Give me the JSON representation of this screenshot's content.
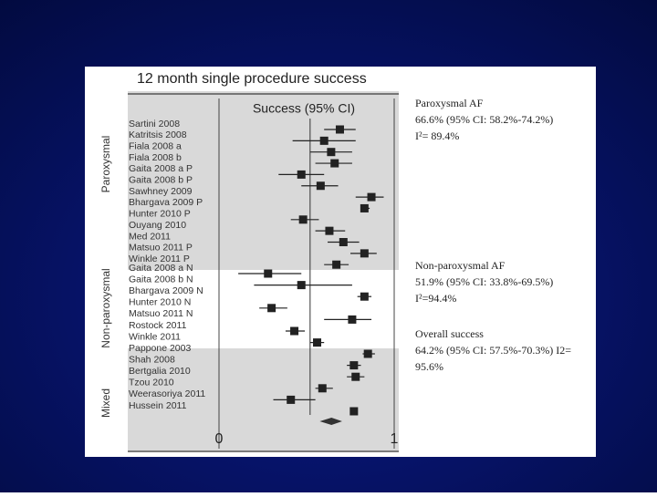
{
  "chart_data": {
    "type": "forest",
    "title": "12 month single procedure success",
    "column_header": "Success (95% CI)",
    "xlim": [
      0,
      1
    ],
    "xticks": [
      0,
      1
    ],
    "reference_x": 0.52,
    "groups": [
      {
        "name": "Paroxysmal",
        "studies": [
          {
            "name": "Sartini 2008",
            "estimate": 0.69,
            "lower": 0.6,
            "upper": 0.78
          },
          {
            "name": "Katritsis 2008",
            "estimate": 0.6,
            "lower": 0.42,
            "upper": 0.78
          },
          {
            "name": "Fiala 2008 a",
            "estimate": 0.64,
            "lower": 0.52,
            "upper": 0.76
          },
          {
            "name": "Fiala 2008 b",
            "estimate": 0.66,
            "lower": 0.55,
            "upper": 0.76
          },
          {
            "name": "Gaita 2008 a P",
            "estimate": 0.47,
            "lower": 0.34,
            "upper": 0.6
          },
          {
            "name": "Gaita 2008 b P",
            "estimate": 0.58,
            "lower": 0.47,
            "upper": 0.68
          },
          {
            "name": "Sawhney 2009",
            "estimate": 0.87,
            "lower": 0.78,
            "upper": 0.94
          },
          {
            "name": "Bhargava 2009 P",
            "estimate": 0.83,
            "lower": 0.81,
            "upper": 0.86
          },
          {
            "name": "Hunter 2010 P",
            "estimate": 0.48,
            "lower": 0.41,
            "upper": 0.57
          },
          {
            "name": "Ouyang 2010",
            "estimate": 0.63,
            "lower": 0.55,
            "upper": 0.72
          },
          {
            "name": "Med 2011",
            "estimate": 0.71,
            "lower": 0.62,
            "upper": 0.8
          },
          {
            "name": "Matsuo 2011 P",
            "estimate": 0.83,
            "lower": 0.75,
            "upper": 0.9
          },
          {
            "name": "Winkle 2011 P",
            "estimate": 0.67,
            "lower": 0.6,
            "upper": 0.74
          }
        ]
      },
      {
        "name": "Non-paroxysmal",
        "studies": [
          {
            "name": "Gaita 2008 a N",
            "estimate": 0.28,
            "lower": 0.11,
            "upper": 0.47
          },
          {
            "name": "Gaita 2008 b N",
            "estimate": 0.47,
            "lower": 0.2,
            "upper": 0.76
          },
          {
            "name": "Bhargava 2009 N",
            "estimate": 0.83,
            "lower": 0.79,
            "upper": 0.87
          },
          {
            "name": "Hunter 2010 N",
            "estimate": 0.3,
            "lower": 0.23,
            "upper": 0.39
          },
          {
            "name": "Matsuo 2011 N",
            "estimate": 0.76,
            "lower": 0.6,
            "upper": 0.87
          },
          {
            "name": "Rostock 2011",
            "estimate": 0.43,
            "lower": 0.38,
            "upper": 0.49
          },
          {
            "name": "Winkle 2011",
            "estimate": 0.56,
            "lower": 0.52,
            "upper": 0.6
          }
        ]
      },
      {
        "name": "Mixed",
        "studies": [
          {
            "name": "Pappone 2003",
            "estimate": 0.85,
            "lower": 0.82,
            "upper": 0.89
          },
          {
            "name": "Shah 2008",
            "estimate": 0.77,
            "lower": 0.73,
            "upper": 0.81
          },
          {
            "name": "Bertgalia 2010",
            "estimate": 0.78,
            "lower": 0.73,
            "upper": 0.83
          },
          {
            "name": "Tzou 2010",
            "estimate": 0.59,
            "lower": 0.55,
            "upper": 0.65
          },
          {
            "name": "Weerasoriya 2011",
            "estimate": 0.41,
            "lower": 0.31,
            "upper": 0.55
          },
          {
            "name": "Hussein 2011",
            "estimate": 0.77,
            "lower": 0.75,
            "upper": 0.79
          }
        ]
      }
    ],
    "overall": {
      "estimate": 0.642,
      "lower": 0.575,
      "upper": 0.703
    },
    "annotations": [
      {
        "lines": [
          "Paroxysmal AF",
          "66.6% (95% CI: 58.2%-74.2%)",
          "I²= 89.4%"
        ]
      },
      {
        "lines": [
          "Non-paroxysmal AF",
          "51.9% (95% CI: 33.8%-69.5%)",
          "I²=94.4%"
        ]
      },
      {
        "lines": [
          "Overall success",
          "64.2% (95% CI: 57.5%-70.3%) I2=",
          "95.6%"
        ]
      }
    ]
  }
}
